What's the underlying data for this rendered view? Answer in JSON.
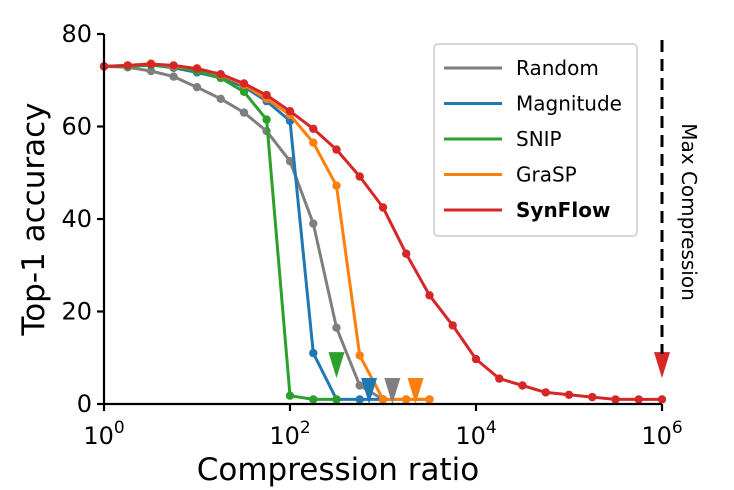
{
  "chart_data": {
    "type": "line",
    "title": "",
    "xlabel": "Compression ratio",
    "ylabel": "Top-1 accuracy",
    "xscale": "log",
    "xlim": [
      1,
      1000000
    ],
    "ylim": [
      0,
      80
    ],
    "xticks": [
      {
        "value": 1,
        "base": "10",
        "exp": "0"
      },
      {
        "value": 100,
        "base": "10",
        "exp": "2"
      },
      {
        "value": 10000,
        "base": "10",
        "exp": "4"
      },
      {
        "value": 1000000,
        "base": "10",
        "exp": "6"
      }
    ],
    "yticks": [
      {
        "value": 0,
        "label": "0"
      },
      {
        "value": 20,
        "label": "20"
      },
      {
        "value": 40,
        "label": "40"
      },
      {
        "value": 60,
        "label": "60"
      },
      {
        "value": 80,
        "label": "80"
      }
    ],
    "grid": false,
    "legend_position": "top-right",
    "series": [
      {
        "name": "Random",
        "color": "#7f7f7f",
        "bold": false,
        "points": [
          [
            1,
            73
          ],
          [
            1.8,
            72.8
          ],
          [
            3.2,
            72
          ],
          [
            5.6,
            70.8
          ],
          [
            10,
            68.5
          ],
          [
            18,
            66
          ],
          [
            32,
            63
          ],
          [
            56,
            59
          ],
          [
            100,
            52.5
          ],
          [
            178,
            39
          ],
          [
            316,
            16.5
          ],
          [
            562,
            4
          ],
          [
            1000,
            1
          ],
          [
            1778,
            1
          ],
          [
            3162,
            1
          ]
        ]
      },
      {
        "name": "Magnitude",
        "color": "#1f77b4",
        "bold": false,
        "points": [
          [
            1,
            73
          ],
          [
            1.8,
            73
          ],
          [
            3.2,
            73.3
          ],
          [
            5.6,
            72.7
          ],
          [
            10,
            71.7
          ],
          [
            18,
            70.5
          ],
          [
            32,
            68.6
          ],
          [
            56,
            65.5
          ],
          [
            100,
            61.2
          ],
          [
            178,
            11
          ],
          [
            316,
            1
          ],
          [
            562,
            1
          ],
          [
            1000,
            1
          ]
        ]
      },
      {
        "name": "SNIP",
        "color": "#2ca02c",
        "bold": false,
        "points": [
          [
            1,
            73
          ],
          [
            1.8,
            73
          ],
          [
            3.2,
            73.3
          ],
          [
            5.6,
            73
          ],
          [
            10,
            72
          ],
          [
            18,
            70.5
          ],
          [
            32,
            67.5
          ],
          [
            56,
            61.5
          ],
          [
            100,
            1.8
          ],
          [
            178,
            1
          ],
          [
            316,
            1
          ]
        ]
      },
      {
        "name": "GraSP",
        "color": "#ff7f0e",
        "bold": false,
        "points": [
          [
            1,
            73
          ],
          [
            1.8,
            73.2
          ],
          [
            3.2,
            73.6
          ],
          [
            5.6,
            73
          ],
          [
            10,
            72.6
          ],
          [
            18,
            71.2
          ],
          [
            32,
            69
          ],
          [
            56,
            66
          ],
          [
            100,
            62.5
          ],
          [
            178,
            56.5
          ],
          [
            316,
            47.2
          ],
          [
            562,
            10.5
          ],
          [
            1000,
            1
          ],
          [
            1778,
            1
          ],
          [
            3162,
            1
          ]
        ]
      },
      {
        "name": "SynFlow",
        "color": "#d62728",
        "bold": true,
        "points": [
          [
            1,
            73
          ],
          [
            1.8,
            73.2
          ],
          [
            3.2,
            73.5
          ],
          [
            5.6,
            73.2
          ],
          [
            10,
            72.5
          ],
          [
            18,
            71.3
          ],
          [
            32,
            69.3
          ],
          [
            56,
            66.8
          ],
          [
            100,
            63.3
          ],
          [
            178,
            59.5
          ],
          [
            316,
            55
          ],
          [
            562,
            49.2
          ],
          [
            1000,
            42.5
          ],
          [
            1778,
            32.5
          ],
          [
            3162,
            23.5
          ],
          [
            5623,
            17
          ],
          [
            10000,
            9.7
          ],
          [
            17783,
            5.5
          ],
          [
            31623,
            4
          ],
          [
            56234,
            2.5
          ],
          [
            100000,
            2
          ],
          [
            177828,
            1.5
          ],
          [
            316228,
            1
          ],
          [
            562341,
            1
          ],
          [
            1000000,
            1
          ]
        ]
      }
    ],
    "max_compression_markers": [
      {
        "series": "Random",
        "x": 1259,
        "y": 0
      },
      {
        "series": "Magnitude",
        "x": 708,
        "y": 0
      },
      {
        "series": "SNIP",
        "x": 316,
        "y": 5.6
      },
      {
        "series": "GraSP",
        "x": 2239,
        "y": 0
      },
      {
        "series": "SynFlow",
        "x": 1000000,
        "y": 5.6
      }
    ],
    "annotation": {
      "label": "Max Compression",
      "x": 1000000
    }
  }
}
